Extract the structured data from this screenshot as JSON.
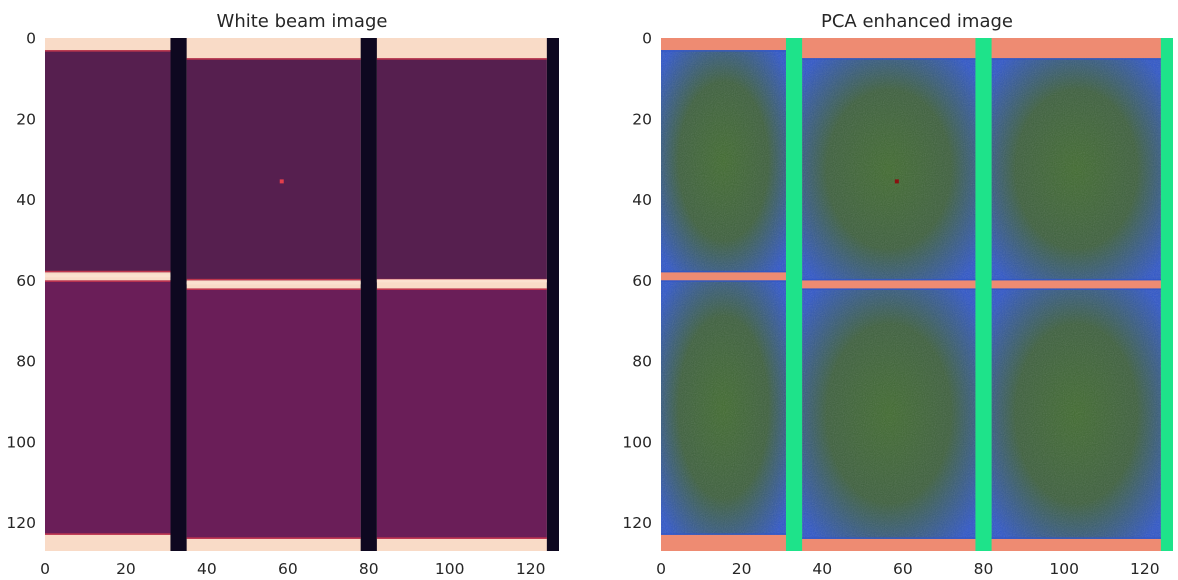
{
  "chart_data": [
    {
      "type": "heatmap",
      "title": "White beam image",
      "xlim": [
        0,
        127
      ],
      "ylim": [
        127,
        0
      ],
      "xticks": [
        0,
        20,
        40,
        60,
        80,
        100,
        120
      ],
      "yticks": [
        0,
        20,
        40,
        60,
        80,
        100,
        120
      ],
      "grid": false,
      "colormap": "rocket",
      "colors": {
        "background": "#f9dbc7",
        "pixel_upper": "#561f4f",
        "pixel_lower": "#6a1e58",
        "gap": "#0e0820",
        "edge_bright": "#fbe1cf",
        "edge_warm": "#e23f4c",
        "hot_pixel": "#e23f4c"
      },
      "modules": [
        {
          "x0": 0,
          "x1": 31,
          "y0": 3,
          "y1": 58
        },
        {
          "x0": 35,
          "x1": 78,
          "y0": 5,
          "y1": 60
        },
        {
          "x0": 82,
          "x1": 124,
          "y0": 5,
          "y1": 60
        },
        {
          "x0": 0,
          "x1": 31,
          "y0": 60,
          "y1": 123
        },
        {
          "x0": 35,
          "x1": 78,
          "y0": 62,
          "y1": 124
        },
        {
          "x0": 82,
          "x1": 124,
          "y0": 62,
          "y1": 124
        }
      ],
      "gaps": [
        {
          "x0": 31,
          "x1": 35
        },
        {
          "x0": 78,
          "x1": 82
        },
        {
          "x0": 124,
          "x1": 127
        }
      ],
      "hot_pixel": {
        "x": 58,
        "y": 35
      }
    },
    {
      "type": "heatmap",
      "title": "PCA enhanced image",
      "xlim": [
        0,
        127
      ],
      "ylim": [
        127,
        0
      ],
      "xticks": [
        0,
        20,
        40,
        60,
        80,
        100,
        120
      ],
      "yticks": [
        0,
        20,
        40,
        60,
        80,
        100,
        120
      ],
      "grid": false,
      "colormap": "RGB composite",
      "colors": {
        "background": "#ee8b72",
        "module_center": "#3f6a2e",
        "module_edge": "#2f56c8",
        "gap": "#1ee38a",
        "hot_pixel": "#8a1010"
      },
      "modules": [
        {
          "x0": 0,
          "x1": 31,
          "y0": 3,
          "y1": 58
        },
        {
          "x0": 35,
          "x1": 78,
          "y0": 5,
          "y1": 60
        },
        {
          "x0": 82,
          "x1": 124,
          "y0": 5,
          "y1": 60
        },
        {
          "x0": 0,
          "x1": 31,
          "y0": 60,
          "y1": 123
        },
        {
          "x0": 35,
          "x1": 78,
          "y0": 62,
          "y1": 124
        },
        {
          "x0": 82,
          "x1": 124,
          "y0": 62,
          "y1": 124
        }
      ],
      "gaps": [
        {
          "x0": 31,
          "x1": 35
        },
        {
          "x0": 78,
          "x1": 82
        },
        {
          "x0": 124,
          "x1": 127
        }
      ],
      "hot_pixel": {
        "x": 58,
        "y": 35
      }
    }
  ]
}
